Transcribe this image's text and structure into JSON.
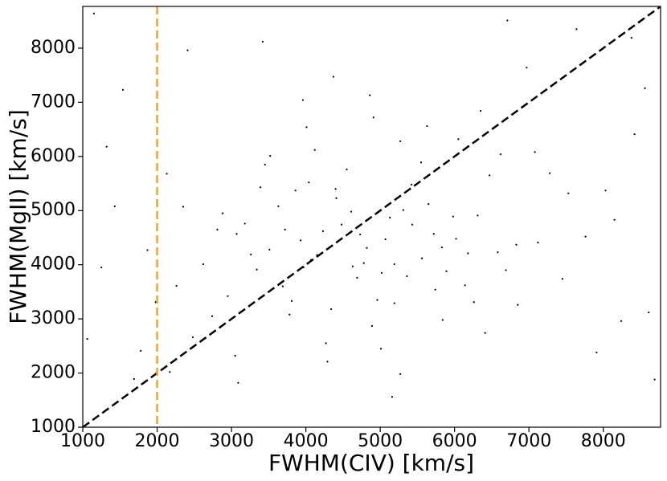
{
  "chart_data": {
    "type": "scatter",
    "xlabel": "FWHM(CIV) [km/s]",
    "ylabel": "FWHM(MgII) [km/s]",
    "xlim": [
      1000,
      8770
    ],
    "ylim": [
      1000,
      8770
    ],
    "xticks": [
      1000,
      2000,
      3000,
      4000,
      5000,
      6000,
      7000,
      8000
    ],
    "yticks": [
      1000,
      2000,
      3000,
      4000,
      5000,
      6000,
      7000,
      8000
    ],
    "color": "#000000",
    "diagonal_line": {
      "color": "#000000",
      "style": "dashed"
    },
    "vline": {
      "x": 2000,
      "color": "#f5a030",
      "style": "dashed"
    },
    "x": [
      4820,
      5130,
      3970,
      5560,
      4410,
      6020,
      4690,
      5310,
      3720,
      5890,
      4230,
      5740,
      6310,
      3510,
      4960,
      5420,
      4070,
      6580,
      3860,
      5190,
      2950,
      4550,
      5070,
      6140,
      3340,
      4780,
      5650,
      3180,
      6830,
      4340,
      5980,
      4120,
      2740,
      5360,
      6470,
      3630,
      4890,
      7120,
      2480,
      5720,
      3810,
      5270,
      6690,
      4480,
      3070,
      5840,
      4040,
      6260,
      2260,
      4630,
      7450,
      3520,
      5550,
      4270,
      6050,
      2880,
      4910,
      3260,
      5190,
      6410,
      1540,
      7910,
      2130,
      8420,
      1250,
      6970,
      3090,
      8150,
      1780,
      7640,
      2410,
      8610,
      1870,
      7280,
      3420,
      5160,
      4370,
      6710,
      1320,
      8030,
      4150,
      4730,
      5430,
      3930,
      6180,
      5020,
      4610,
      3690,
      5830,
      4400,
      2620,
      3050,
      3390,
      2810,
      3960,
      7080,
      7530,
      6850,
      2350,
      7760,
      5010,
      4290,
      5630,
      3780,
      6350,
      4860,
      5270,
      4010,
      6620,
      3450,
      1060,
      1430,
      8690,
      8240,
      1980,
      2170,
      1690,
      8560,
      1150,
      8380
    ],
    "values": [
      4310,
      4870,
      3950,
      4120,
      5230,
      4480,
      3760,
      5010,
      4650,
      3880,
      4620,
      3540,
      4910,
      4280,
      3350,
      5480,
      4090,
      4230,
      5370,
      4010,
      3420,
      5760,
      4470,
      3620,
      3910,
      4030,
      5120,
      4760,
      4370,
      3180,
      4890,
      6120,
      3050,
      3790,
      5650,
      5080,
      2870,
      4410,
      2660,
      4570,
      3330,
      6280,
      3900,
      4740,
      4570,
      2980,
      5520,
      3310,
      3610,
      3970,
      3740,
      6010,
      5890,
      2550,
      6320,
      4950,
      6720,
      4190,
      3290,
      2740,
      7230,
      2380,
      5680,
      6410,
      3950,
      7640,
      1820,
      4830,
      2410,
      8350,
      7960,
      3120,
      4270,
      5690,
      8120,
      1560,
      7470,
      8510,
      6180,
      5370,
      4180,
      4560,
      4740,
      4450,
      4210,
      3850,
      4980,
      3600,
      4320,
      5400,
      4010,
      2320,
      5430,
      4650,
      7040,
      6080,
      5320,
      3260,
      5070,
      4520,
      2450,
      2210,
      6560,
      3080,
      6840,
      7130,
      1980,
      6540,
      6040,
      5850,
      2630,
      5080,
      1880,
      2960,
      3310,
      2020,
      1890,
      7260,
      8640,
      8190
    ]
  }
}
